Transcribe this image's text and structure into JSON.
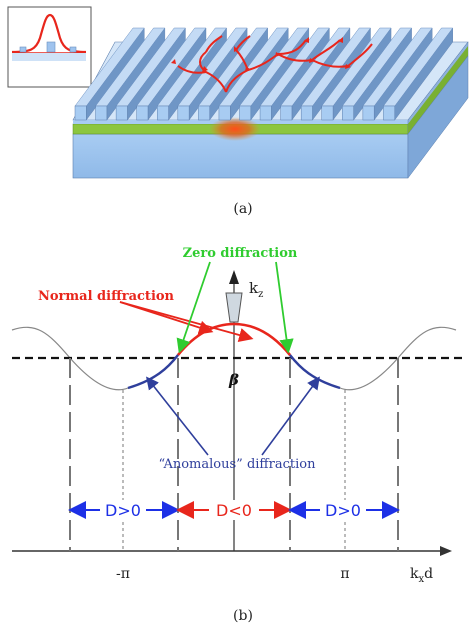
{
  "panel_a": {
    "caption": "(a)"
  },
  "panel_b": {
    "caption": "(b)",
    "labels": {
      "zero_diffraction": "Zero diffraction",
      "normal_diffraction": "Normal diffraction",
      "anomalous_diffraction": "“Anomalous” diffraction",
      "beta": "β",
      "kz_main": "k",
      "kz_sub": "z",
      "kx_main": "k",
      "kx_sub": "x",
      "kx_suffix": "d",
      "minus_pi": "-π",
      "pi": "π",
      "d_positive_left": "D>0",
      "d_negative": "D<0",
      "d_positive_right": "D>0"
    }
  },
  "colors": {
    "grating_top": "#b9d3f2",
    "grating_side": "#6f96c6",
    "substrate": "#9fc3ee",
    "green_layer": "#8cc63f",
    "red_curve": "#e8261c",
    "blue_curve": "#2f3f9c",
    "green_label": "#2fcc2f",
    "blue_arrow": "#1d30e6"
  }
}
